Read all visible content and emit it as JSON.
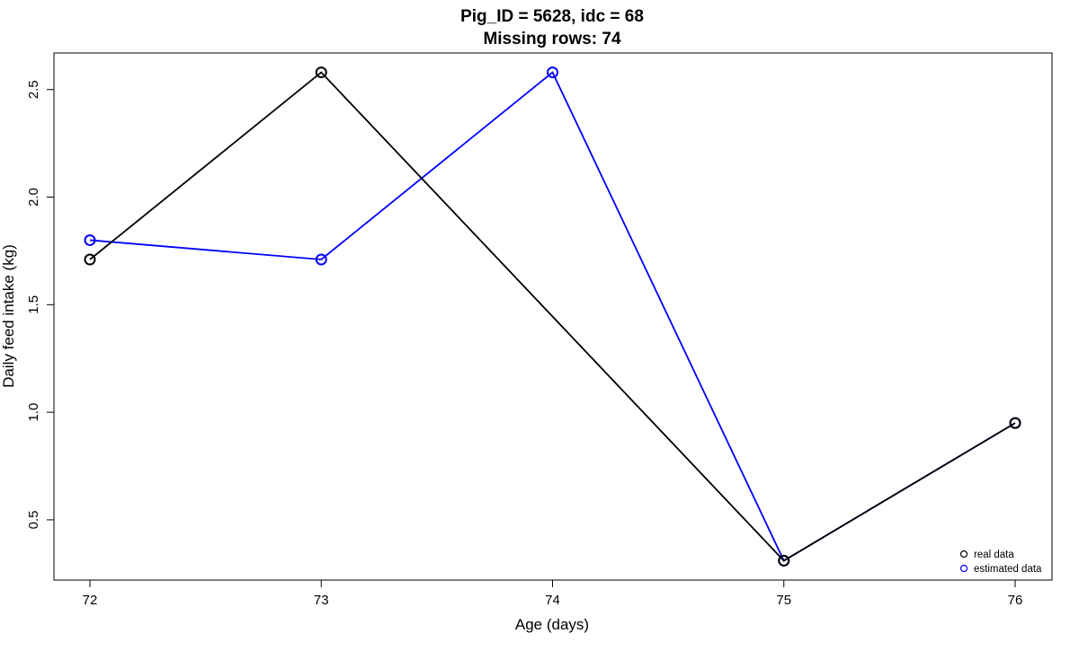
{
  "chart_data": {
    "type": "line",
    "title": "Pig_ID = 5628, idc = 68",
    "subtitle": "Missing rows: 74",
    "xlabel": "Age (days)",
    "ylabel": "Daily feed intake (kg)",
    "xlim": [
      72,
      76
    ],
    "ylim": [
      0.22,
      2.67
    ],
    "x_ticks": [
      72,
      73,
      74,
      75,
      76
    ],
    "x_tick_labels": [
      "72",
      "73",
      "74",
      "75",
      "76"
    ],
    "y_ticks": [
      0.5,
      1.0,
      1.5,
      2.0,
      2.5
    ],
    "y_tick_labels": [
      "0.5",
      "1.0",
      "1.5",
      "2.0",
      "2.5"
    ],
    "grid": false,
    "legend_position": "bottom-right",
    "series": [
      {
        "name": "estimated data",
        "color": "#0000ff",
        "marker": "open-circle",
        "x": [
          72,
          73,
          74,
          75,
          76
        ],
        "y": [
          1.8,
          1.71,
          2.58,
          0.31,
          0.95
        ]
      },
      {
        "name": "real data",
        "color": "#000000",
        "marker": "open-circle",
        "x": [
          72,
          73,
          75,
          76
        ],
        "y": [
          1.71,
          2.58,
          0.31,
          0.95
        ]
      }
    ],
    "legend": [
      {
        "label": "real data",
        "color": "#000000"
      },
      {
        "label": "estimated data",
        "color": "#0000ff"
      }
    ]
  }
}
